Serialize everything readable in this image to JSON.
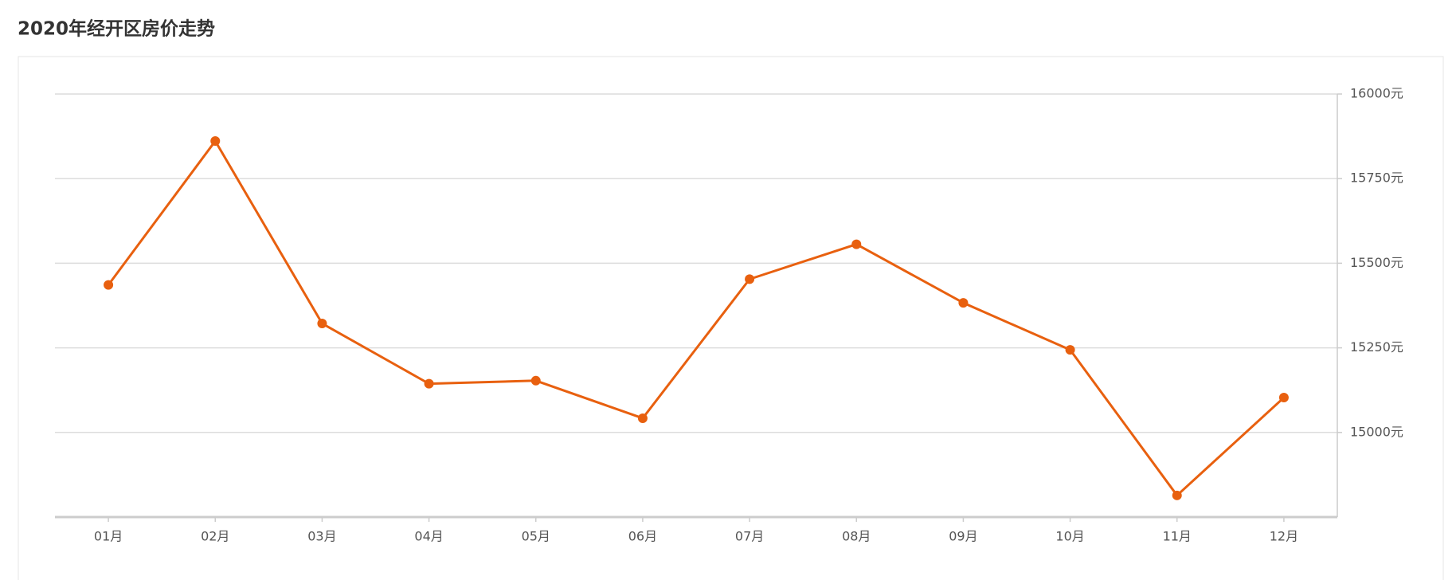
{
  "chart_data": {
    "type": "line",
    "title": "2020年经开区房价走势",
    "categories": [
      "01月",
      "02月",
      "03月",
      "04月",
      "05月",
      "06月",
      "07月",
      "08月",
      "09月",
      "10月",
      "11月",
      "12月"
    ],
    "series": [
      {
        "name": "房价",
        "color": "#e8600f",
        "values": [
          15436,
          15861,
          15322,
          15144,
          15153,
          15042,
          15453,
          15556,
          15383,
          15244,
          14814,
          15103
        ]
      }
    ],
    "ylim": [
      14750,
      16000
    ],
    "yticks": [
      {
        "value": 15000,
        "label": "15000元"
      },
      {
        "value": 15250,
        "label": "15250元"
      },
      {
        "value": 15500,
        "label": "15500元"
      },
      {
        "value": 15750,
        "label": "15750元"
      },
      {
        "value": 16000,
        "label": "16000元"
      }
    ],
    "grid": true,
    "y_axis_side": "right"
  }
}
